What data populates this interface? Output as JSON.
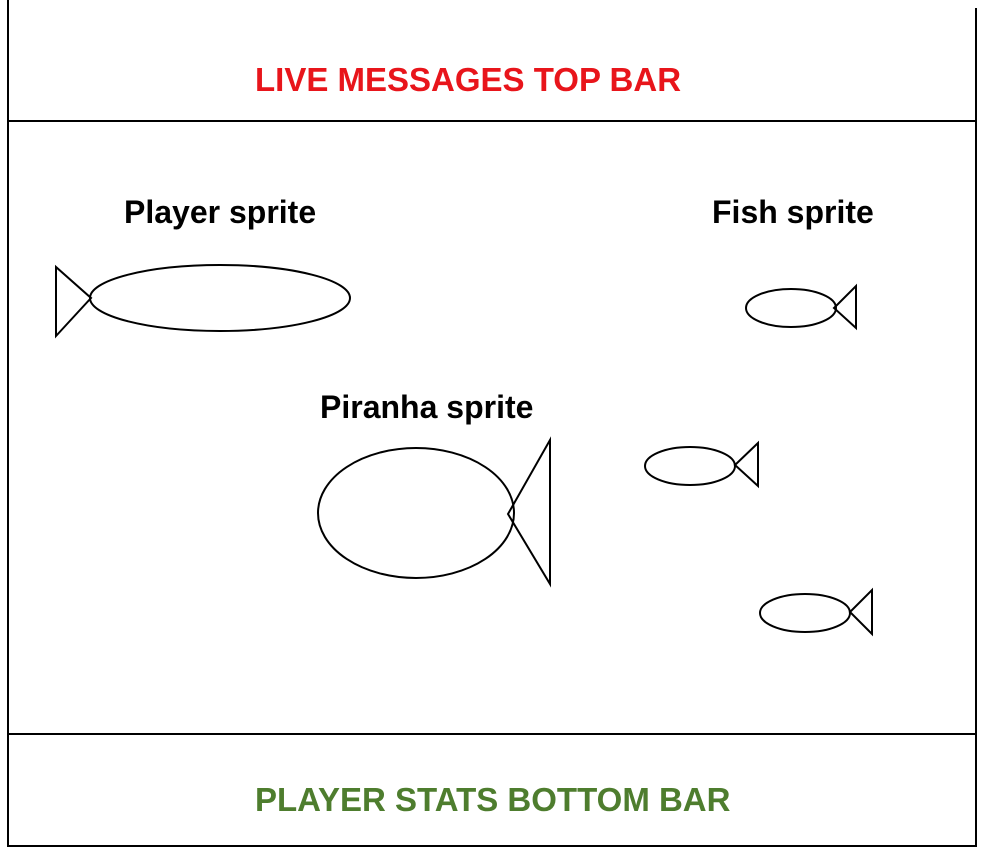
{
  "top_bar": {
    "label": "LIVE MESSAGES TOP BAR",
    "color": "#e8151b"
  },
  "bottom_bar": {
    "label": "PLAYER STATS BOTTOM BAR",
    "color": "#4e7d2e"
  },
  "play_area": {
    "labels": {
      "player": "Player sprite",
      "fish": "Fish sprite",
      "piranha": "Piranha sprite"
    }
  },
  "stroke_color": "#000000"
}
